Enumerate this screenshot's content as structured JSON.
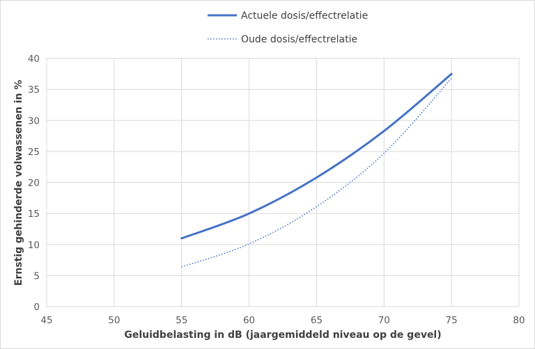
{
  "chart_data": {
    "type": "line",
    "title": "",
    "xlabel": "Geluidbelasting in dB (jaargemiddeld niveau op de gevel)",
    "ylabel": "Ernstig gehinderde volwassenen in %",
    "xlim": [
      45,
      80
    ],
    "ylim": [
      0,
      40
    ],
    "xticks": [
      45,
      50,
      55,
      60,
      65,
      70,
      75,
      80
    ],
    "yticks": [
      0,
      5,
      10,
      15,
      20,
      25,
      30,
      35,
      40
    ],
    "grid": true,
    "legend_position": "top",
    "x": [
      55,
      60,
      65,
      70,
      75
    ],
    "series": [
      {
        "name": "Actuele dosis/effectrelatie",
        "style": "solid",
        "color": "#4472c4",
        "values": [
          11.0,
          15.0,
          20.8,
          28.3,
          37.5
        ]
      },
      {
        "name": "Oude dosis/effectrelatie",
        "style": "dotted",
        "color": "#4472c4",
        "values": [
          6.4,
          10.1,
          16.1,
          24.7,
          36.8
        ]
      }
    ]
  }
}
